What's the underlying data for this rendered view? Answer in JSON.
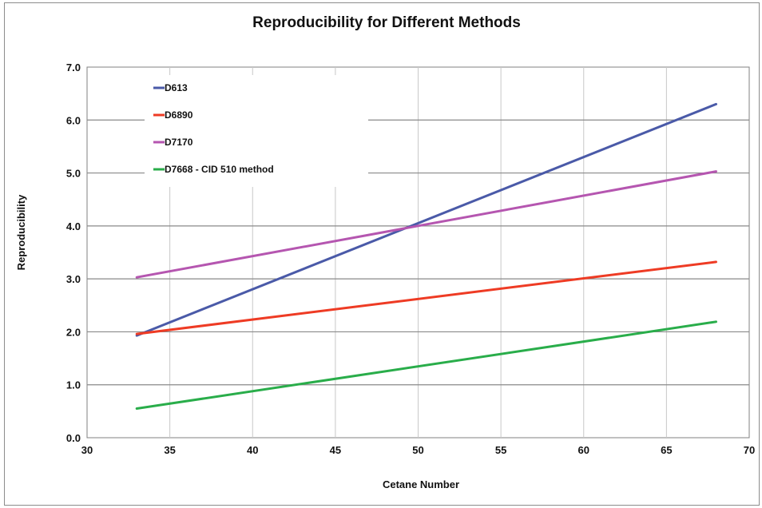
{
  "chart_data": {
    "type": "line",
    "title": "Reproducibility for Different Methods",
    "xlabel": "Cetane Number",
    "ylabel": "Reproducibility",
    "xlim": [
      30,
      70
    ],
    "ylim": [
      0,
      7
    ],
    "x_ticks": [
      "30",
      "35",
      "40",
      "45",
      "50",
      "55",
      "60",
      "65",
      "70"
    ],
    "y_ticks": [
      "0.0",
      "1.0",
      "2.0",
      "3.0",
      "4.0",
      "5.0",
      "6.0",
      "7.0"
    ],
    "grid": true,
    "legend_position": "top-left",
    "series": [
      {
        "name": "D613",
        "color": "#4a5aa8",
        "x": [
          33,
          68
        ],
        "y": [
          1.93,
          6.3
        ]
      },
      {
        "name": "D6890",
        "color": "#ee3b24",
        "x": [
          33,
          68
        ],
        "y": [
          1.96,
          3.32
        ]
      },
      {
        "name": "D7170",
        "color": "#b556b0",
        "x": [
          33,
          68
        ],
        "y": [
          3.03,
          5.03
        ]
      },
      {
        "name": "D7668 - CID 510 method",
        "color": "#29ad4a",
        "x": [
          33,
          68
        ],
        "y": [
          0.55,
          2.19
        ]
      }
    ]
  }
}
